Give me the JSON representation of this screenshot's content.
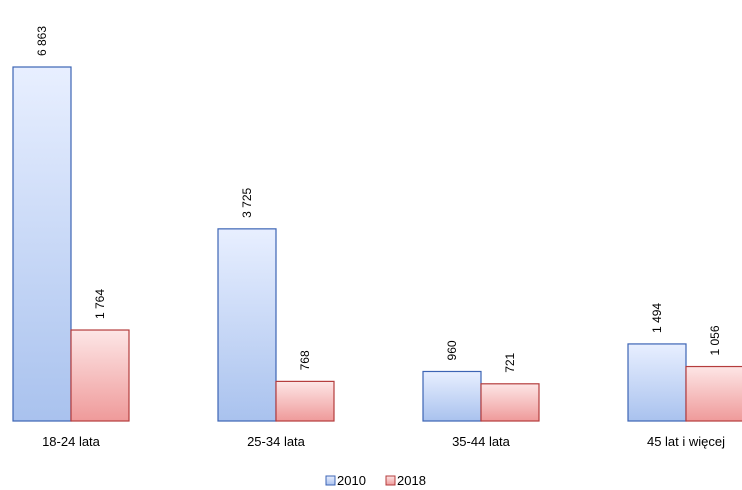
{
  "chart_data": {
    "type": "bar",
    "categories": [
      "18-24 lata",
      "25-34 lata",
      "35-44 lata",
      "45 lat i więcej"
    ],
    "series": [
      {
        "name": "2010",
        "values": [
          6863,
          3725,
          960,
          1494
        ],
        "labels": [
          "6 863",
          "3 725",
          "960",
          "1 494"
        ]
      },
      {
        "name": "2018",
        "values": [
          1764,
          768,
          721,
          1056
        ],
        "labels": [
          "1 764",
          "768",
          "721",
          "1 056"
        ]
      }
    ],
    "ylim": [
      0,
      6863
    ],
    "grid": false,
    "legend_position": "bottom",
    "colors": {
      "s2010_fill_top": "#e8efff",
      "s2010_fill_bottom": "#a9c2ee",
      "s2010_stroke": "#3c64b4",
      "s2018_fill_top": "#fde6e6",
      "s2018_fill_bottom": "#ef9a9a",
      "s2018_stroke": "#b43c3c"
    }
  }
}
